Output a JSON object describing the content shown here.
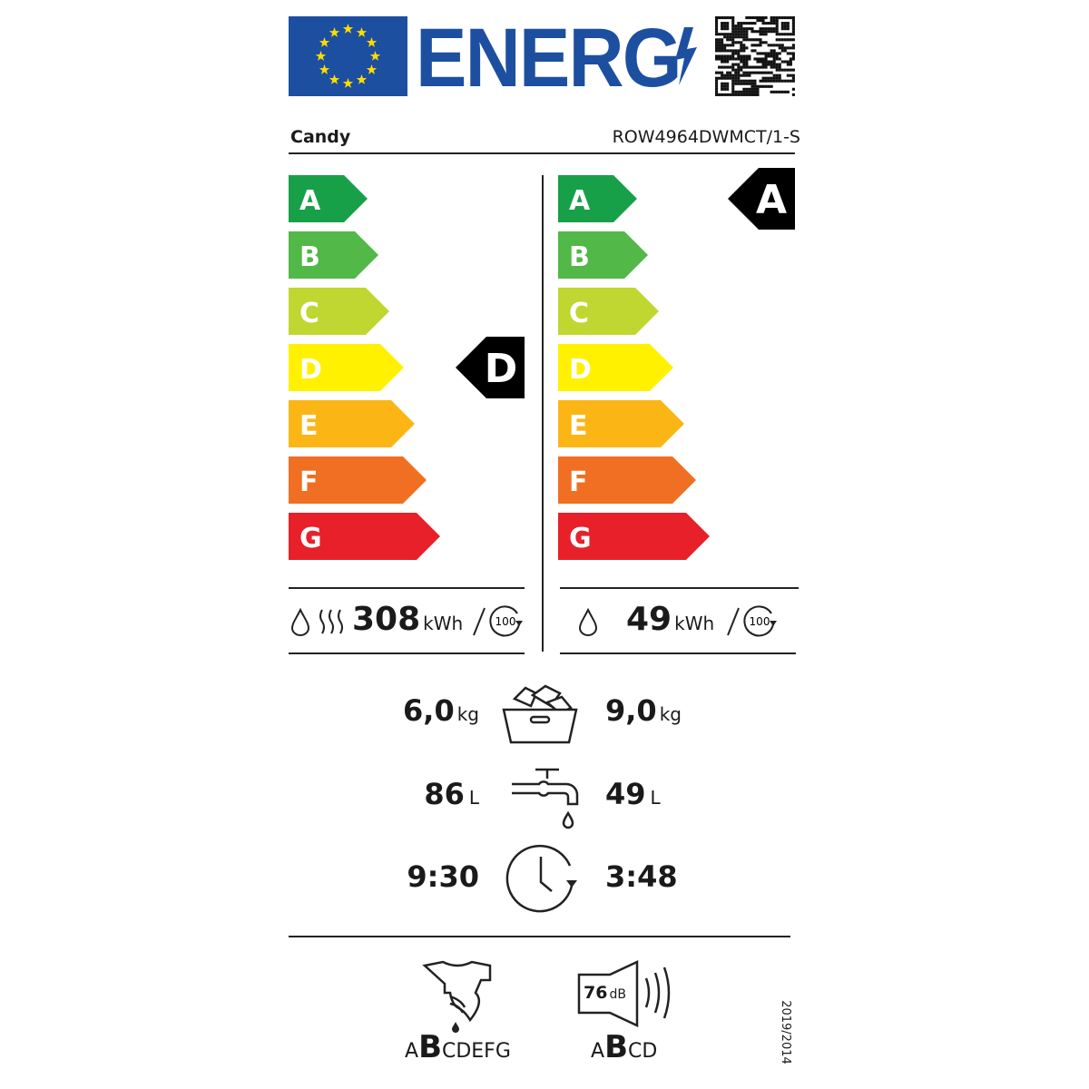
{
  "header": {
    "logo_text": "ENERG",
    "flag_color": "#1d4fa1",
    "star_color": "#ffdd00",
    "qr_icon": "qr-code-icon"
  },
  "brand": "Candy",
  "model": "ROW4964DWMCT/1-S",
  "scale_classes": [
    "A",
    "B",
    "C",
    "D",
    "E",
    "F",
    "G"
  ],
  "scale_colors": [
    "#18a049",
    "#52b847",
    "#bfd730",
    "#fff100",
    "#fbb616",
    "#f06f22",
    "#e7202a"
  ],
  "washer_dryer": {
    "energy_class": "D",
    "energy_value": "308",
    "energy_unit": "kWh",
    "cycles": "100"
  },
  "washing": {
    "energy_class": "A",
    "energy_value": "49",
    "energy_unit": "kWh",
    "cycles": "100"
  },
  "capacity": {
    "left_value": "6,0",
    "right_value": "9,0",
    "unit": "kg"
  },
  "water": {
    "left_value": "86",
    "right_value": "49",
    "unit": "L"
  },
  "duration": {
    "left_value": "9:30",
    "right_value": "3:48"
  },
  "spin": {
    "scale_before": "A",
    "class": "B",
    "scale_after": "CDEFG"
  },
  "noise": {
    "value": "76",
    "unit": "dB",
    "scale_before": "A",
    "class": "B",
    "scale_after": "CD"
  },
  "regulation": "2019/2014"
}
